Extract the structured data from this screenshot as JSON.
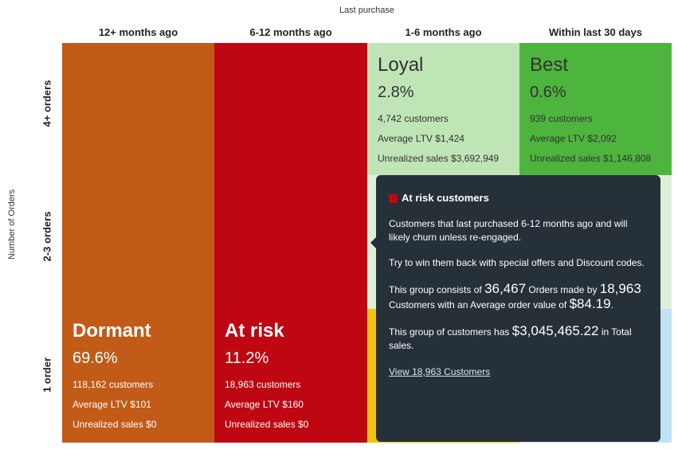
{
  "chart_data": {
    "type": "heatmap",
    "x_axis": {
      "title": "Last purchase",
      "categories": [
        "12+ months ago",
        "6-12 months ago",
        "1-6 months ago",
        "Within last 30 days"
      ]
    },
    "y_axis": {
      "title": "Number of Orders",
      "categories": [
        "4+ orders",
        "2-3 orders",
        "1 order"
      ]
    },
    "segments": [
      {
        "name": "Dormant",
        "pct": "69.6%",
        "customers": "118,162 customers",
        "ltv": "Average LTV $101",
        "unrealized": "Unrealized sales $0",
        "color": "#c25a18",
        "col": "12+ months ago",
        "rows": [
          "4+ orders",
          "2-3 orders",
          "1 order"
        ]
      },
      {
        "name": "At risk",
        "pct": "11.2%",
        "customers": "18,963 customers",
        "ltv": "Average LTV $160",
        "unrealized": "Unrealized sales $0",
        "color": "#be0712",
        "col": "6-12 months ago",
        "rows": [
          "4+ orders",
          "2-3 orders",
          "1 order"
        ]
      },
      {
        "name": "Loyal",
        "pct": "2.8%",
        "customers": "4,742 customers",
        "ltv": "Average LTV $1,424",
        "unrealized": "Unrealized sales $3,692,949",
        "color": "#bfe5b6",
        "col": "1-6 months ago",
        "rows": [
          "4+ orders"
        ]
      },
      {
        "name": "Best",
        "pct": "0.6%",
        "customers": "939 customers",
        "ltv": "Average LTV $2,092",
        "unrealized": "Unrealized sales $1,146,808",
        "color": "#4db43d",
        "col": "Within last 30 days",
        "rows": [
          "4+ orders"
        ]
      }
    ],
    "hidden_cells": [
      {
        "col": "1-6 months ago",
        "rows": [
          "2-3 orders"
        ],
        "color": "#ddf0d7"
      },
      {
        "col": "Within last 30 days",
        "rows": [
          "2-3 orders"
        ],
        "color": "#ddf0d7"
      },
      {
        "col": "1-6 months ago",
        "rows": [
          "1 order"
        ],
        "color": "#f1c114"
      },
      {
        "col": "Within last 30 days",
        "rows": [
          "1 order"
        ],
        "color": "#bfe3f3"
      }
    ]
  },
  "tooltip": {
    "title": "At risk customers",
    "swatch_color": "#be0712",
    "description": "Customers that last purchased 6-12 months ago and will likely churn unless re-engaged.",
    "advice": "Try to win them back with special offers and Discount codes.",
    "group_text_1": "This group consists of",
    "orders_count": "36,467",
    "group_text_2": "Orders made by",
    "customers_count": "18,963",
    "group_text_3": "Customers with an Average order value of",
    "aov": "$84.19",
    "aov_suffix": ".",
    "sales_text_1": "This group of customers has",
    "total_sales": "$3,045,465.22",
    "sales_text_2": "in Total sales.",
    "link_label": "View 18,963 Customers"
  }
}
